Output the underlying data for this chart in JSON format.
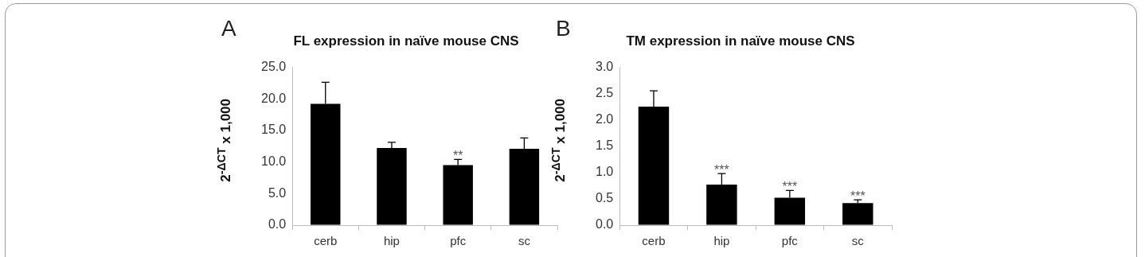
{
  "chart_data": [
    {
      "type": "bar",
      "title": "FL expression in naïve mouse CNS",
      "ylabel": "2$^{-ΔCT}$ x 1,000",
      "categories": [
        "cerb",
        "hip",
        "pfc",
        "sc"
      ],
      "values": [
        19.2,
        12.2,
        9.5,
        12.1
      ],
      "color": "#000000",
      "errors": [
        [
          19.2,
          22.6
        ],
        [
          12.2,
          13.1
        ],
        [
          9.5,
          10.4
        ],
        [
          12.1,
          13.8
        ]
      ],
      "ylim": [
        0,
        25
      ],
      "yticks": [
        {
          "value": 0,
          "label": "0.0"
        },
        {
          "value": 5,
          "label": "5.0"
        },
        {
          "value": 10,
          "label": "10.0"
        },
        {
          "value": 15,
          "label": "15.0"
        },
        {
          "value": 20,
          "label": "20.0"
        },
        {
          "value": 25,
          "label": "25.0"
        }
      ],
      "grid": false,
      "legend": false,
      "annotations": [
        "A",
        {
          "text": "**",
          "x": "pfc",
          "y": 10.4
        }
      ]
    },
    {
      "type": "bar",
      "title": "TM expression in naïve mouse CNS",
      "ylabel": "2$^{-ΔCT}$ x 1,000",
      "categories": [
        "cerb",
        "hip",
        "pfc",
        "sc"
      ],
      "values": [
        2.25,
        0.77,
        0.52,
        0.42
      ],
      "color": "#000000",
      "errors": [
        [
          2.25,
          2.55
        ],
        [
          0.77,
          0.98
        ],
        [
          0.52,
          0.66
        ],
        [
          0.42,
          0.48
        ]
      ],
      "ylim": [
        0,
        3
      ],
      "yticks": [
        {
          "value": 0,
          "label": "0.0"
        },
        {
          "value": 0.5,
          "label": "0.5"
        },
        {
          "value": 1,
          "label": "1.0"
        },
        {
          "value": 1.5,
          "label": "1.5"
        },
        {
          "value": 2,
          "label": "2.0"
        },
        {
          "value": 2.5,
          "label": "2.5"
        },
        {
          "value": 3,
          "label": "3.0"
        }
      ],
      "grid": false,
      "legend": false,
      "annotations": [
        "B",
        {
          "text": "***",
          "x": "hip",
          "y": 0.98
        },
        {
          "text": "***",
          "x": "pfc",
          "y": 0.66
        },
        {
          "text": "***",
          "x": "sc",
          "y": 0.48
        }
      ]
    }
  ]
}
